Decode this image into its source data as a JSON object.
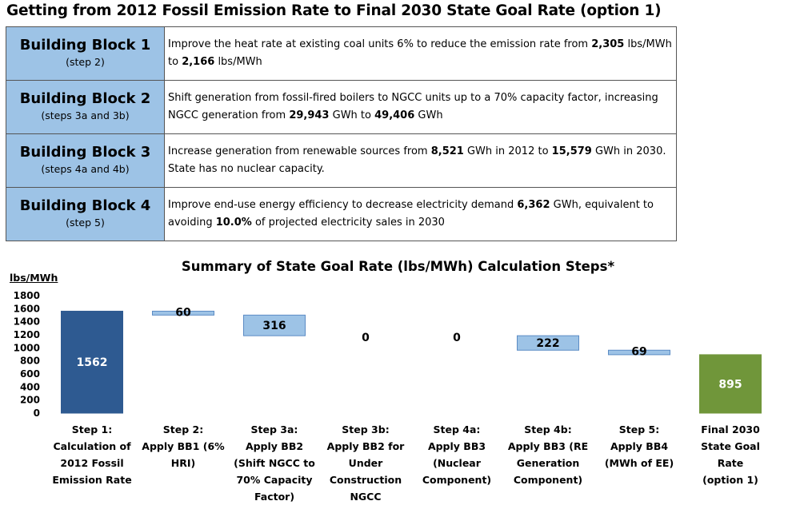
{
  "title": "Getting from 2012 Fossil Emission Rate to Final 2030 State Goal Rate (option 1)",
  "building_blocks": [
    {
      "name": "Building Block 1",
      "step": "(step 2)",
      "desc": [
        {
          "t": "Improve the heat rate at existing coal units 6% to reduce the emission rate from "
        },
        {
          "t": "2,305",
          "b": true
        },
        {
          "t": " lbs/MWh to "
        },
        {
          "t": "2,166",
          "b": true
        },
        {
          "t": " lbs/MWh"
        }
      ]
    },
    {
      "name": "Building Block 2",
      "step": "(steps 3a and 3b)",
      "desc": [
        {
          "t": "Shift generation from fossil-fired boilers to NGCC units up to a 70% capacity factor, increasing NGCC generation from "
        },
        {
          "t": "29,943",
          "b": true
        },
        {
          "t": " GWh to "
        },
        {
          "t": "49,406",
          "b": true
        },
        {
          "t": " GWh"
        }
      ]
    },
    {
      "name": "Building Block 3",
      "step": "(steps 4a and 4b)",
      "desc": [
        {
          "t": "Increase generation from renewable sources from "
        },
        {
          "t": "8,521",
          "b": true
        },
        {
          "t": " GWh in 2012 to "
        },
        {
          "t": "15,579",
          "b": true
        },
        {
          "t": " GWh in 2030. State has no nuclear capacity."
        }
      ]
    },
    {
      "name": "Building Block 4",
      "step": "(step 5)",
      "desc": [
        {
          "t": "Improve end-use energy efficiency to decrease electricity demand "
        },
        {
          "t": "6,362",
          "b": true
        },
        {
          "t": " GWh, equivalent to avoiding "
        },
        {
          "t": "10.0%",
          "b": true
        },
        {
          "t": " of projected electricity sales in 2030"
        }
      ]
    }
  ],
  "chart_data": {
    "type": "bar",
    "subtype": "waterfall",
    "title": "Summary of State Goal Rate (lbs/MWh) Calculation Steps*",
    "ylabel": "lbs/MWh",
    "ylim": [
      0,
      1800
    ],
    "yticks": [
      0,
      200,
      400,
      600,
      800,
      1000,
      1200,
      1400,
      1600,
      1800
    ],
    "grid": false,
    "categories": [
      [
        "Step 1:",
        "Calculation of",
        "2012 Fossil",
        "Emission Rate"
      ],
      [
        "Step 2:",
        "Apply BB1 (6%",
        "HRI)"
      ],
      [
        "Step 3a:",
        "Apply BB2",
        "(Shift NGCC to",
        "70% Capacity",
        "Factor)"
      ],
      [
        "Step 3b:",
        "Apply BB2 for",
        "Under",
        "Construction",
        "NGCC"
      ],
      [
        "Step 4a:",
        "Apply BB3",
        "(Nuclear",
        "Component)"
      ],
      [
        "Step 4b:",
        "Apply BB3 (RE",
        "Generation",
        "Component)"
      ],
      [
        "Step 5:",
        "Apply BB4",
        "(MWh of EE)"
      ],
      [
        "Final 2030",
        "State Goal",
        "Rate",
        "(option 1)"
      ]
    ],
    "bars": [
      {
        "kind": "total",
        "value": 1562,
        "label": "1562"
      },
      {
        "kind": "step",
        "value": 60,
        "label": "60"
      },
      {
        "kind": "step",
        "value": 316,
        "label": "316"
      },
      {
        "kind": "step",
        "value": 0,
        "label": "0"
      },
      {
        "kind": "step",
        "value": 0,
        "label": "0"
      },
      {
        "kind": "step",
        "value": 222,
        "label": "222"
      },
      {
        "kind": "step",
        "value": 69,
        "label": "69"
      },
      {
        "kind": "total",
        "value": 895,
        "label": "895"
      }
    ],
    "colors": {
      "start": "#2e5a91",
      "step": "#9dc3e6",
      "final": "#70963a",
      "step_border": "#5b8bc4"
    }
  }
}
